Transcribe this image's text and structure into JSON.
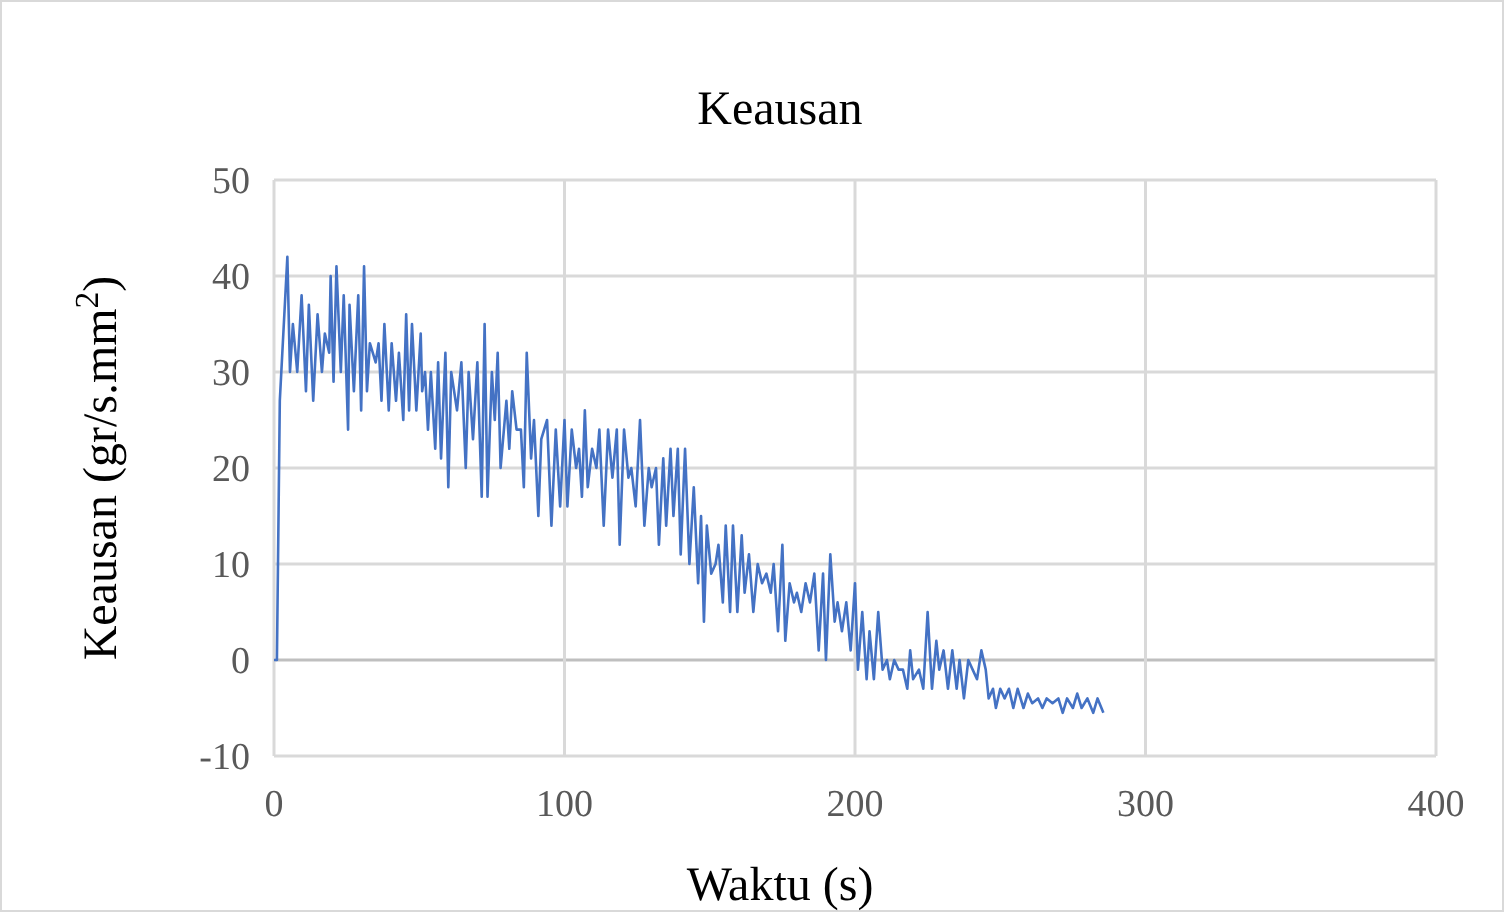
{
  "chart_data": {
    "type": "line",
    "title": "Keausan",
    "xlabel": "Waktu (s)",
    "ylabel": "Keausan (gr/s.mm$^{2}$)",
    "x": [
      0,
      1,
      2,
      4.6,
      5.5,
      6.5,
      8,
      9.5,
      11,
      12,
      13.5,
      15,
      16.5,
      17.5,
      19,
      19.5,
      20.5,
      21.5,
      23,
      24,
      25.5,
      26,
      27.5,
      29,
      30,
      31,
      32,
      33,
      35,
      36,
      37,
      38,
      39.5,
      40.5,
      42,
      43,
      44.5,
      45.5,
      46.5,
      47.5,
      49,
      50.5,
      51,
      52,
      53,
      54,
      55.5,
      56.5,
      57.5,
      59,
      60,
      61,
      63,
      64.5,
      66,
      67,
      68.5,
      70,
      71.5,
      72.5,
      73.5,
      75,
      76,
      77,
      78,
      80,
      81,
      82,
      83.5,
      85,
      86,
      87,
      88.5,
      89.5,
      91,
      92,
      94,
      95.5,
      97,
      98.5,
      100,
      101,
      102.5,
      104,
      105,
      106,
      107,
      108,
      109.5,
      111,
      112,
      113.5,
      115,
      116.5,
      118,
      119,
      120.5,
      122,
      123,
      124.5,
      126,
      127.5,
      129,
      130,
      131.5,
      132.5,
      134,
      135,
      136.5,
      137.5,
      139,
      140,
      141.5,
      143,
      144.5,
      146,
      147,
      148,
      149,
      150.5,
      152,
      153,
      154.5,
      155.5,
      157,
      158,
      159.5,
      161,
      162,
      163.5,
      165,
      166.5,
      168,
      169.5,
      171,
      172,
      173.5,
      175,
      176,
      177.5,
      179,
      180,
      181.5,
      183,
      184.5,
      186,
      187.5,
      189,
      190,
      191.5,
      193,
      194,
      195.5,
      197,
      198.5,
      200,
      201,
      202.5,
      204,
      205,
      206.5,
      208,
      209.5,
      211,
      212,
      213.5,
      215,
      216.5,
      218,
      219,
      220,
      222,
      223.5,
      225,
      226.5,
      228,
      229,
      230.5,
      232,
      233.5,
      235,
      236,
      237.5,
      239,
      240.5,
      242,
      243.5,
      245,
      246,
      247.5,
      248.5,
      250,
      251.5,
      253,
      254.5,
      256,
      258,
      259.5,
      261,
      263,
      264.5,
      266,
      268,
      270,
      271.5,
      273,
      275,
      276.5,
      278,
      280,
      282,
      283.5,
      285.5
    ],
    "values": [
      0,
      0,
      27,
      42,
      30,
      35,
      30,
      38,
      28,
      37,
      27,
      36,
      30,
      34,
      32,
      40,
      29,
      41,
      30,
      38,
      24,
      37,
      28,
      38,
      26,
      41,
      28,
      33,
      31,
      33,
      27,
      35,
      26,
      33,
      27,
      32,
      25,
      36,
      26,
      35,
      26,
      34,
      28,
      30,
      24,
      30,
      22,
      31,
      21,
      32,
      18,
      30,
      26,
      31,
      20,
      30,
      23,
      31,
      17,
      35,
      17,
      30,
      25,
      32,
      20,
      27,
      22,
      28,
      24,
      24,
      18,
      32,
      21,
      25,
      15,
      23,
      25,
      14,
      24,
      16,
      25,
      16,
      24,
      20,
      22,
      17,
      26,
      18,
      22,
      20,
      24,
      14,
      24,
      19,
      24,
      12,
      24,
      19,
      20,
      16,
      25,
      14,
      20,
      18,
      20,
      12,
      21,
      14,
      22,
      15,
      22,
      11,
      22,
      10,
      18,
      8,
      15,
      4,
      14,
      9,
      10,
      12,
      6,
      14,
      5,
      14,
      5,
      13,
      7,
      11,
      5,
      10,
      8,
      9,
      7,
      10,
      3,
      12,
      2,
      8,
      6,
      7,
      5,
      8,
      6,
      9,
      1,
      9,
      0,
      11,
      4,
      6,
      3,
      6,
      1,
      8,
      -1,
      5,
      -2,
      3,
      -2,
      5,
      -1,
      0,
      -2,
      0,
      -1,
      -1,
      -3,
      1,
      -2,
      -1,
      -3,
      5,
      -3,
      2,
      -1,
      1,
      -3,
      1,
      -3,
      0,
      -4,
      0,
      -1,
      -2,
      1,
      -1,
      -4,
      -3,
      -5,
      -3,
      -4,
      -3,
      -5,
      -3,
      -5,
      -3.5,
      -4.5,
      -4,
      -5,
      -4,
      -4.5,
      -4,
      -5.5,
      -4,
      -5,
      -3.5,
      -5,
      -4,
      -5.5,
      -4,
      -5.5
    ],
    "color": "#4472c4",
    "xlim": [
      0,
      400
    ],
    "xticks": [
      0,
      100,
      200,
      300,
      400
    ],
    "ylim": [
      -10,
      50
    ],
    "yticks": [
      -10,
      0,
      10,
      20,
      30,
      40,
      50
    ],
    "grid": true,
    "marker": "none",
    "line_style": "solid"
  }
}
